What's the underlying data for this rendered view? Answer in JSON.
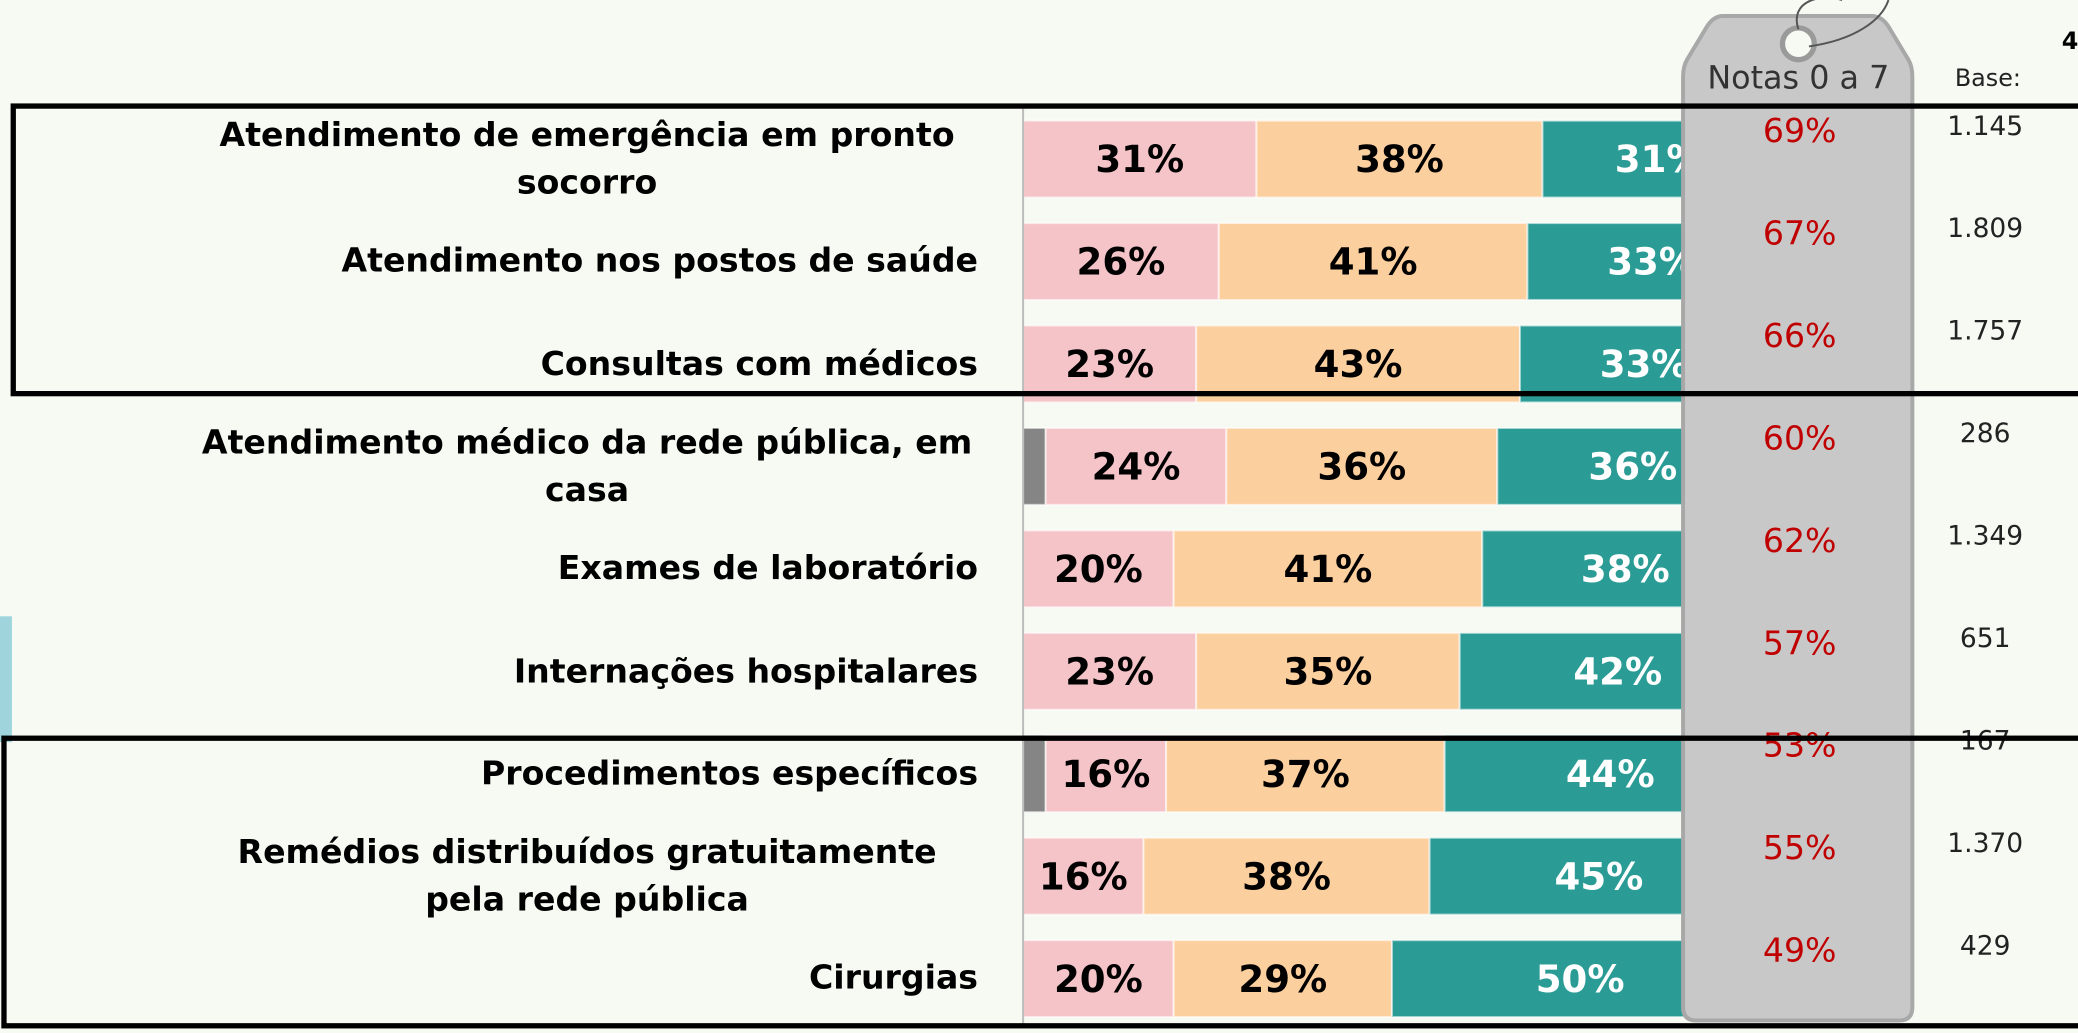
{
  "chart_data": {
    "type": "stacked_barh",
    "page_number": "4",
    "categories": [
      "Atendimento de emergência em pronto socorro",
      "Atendimento nos postos de saúde",
      "Consultas com médicos",
      "Atendimento médico da rede pública, em casa",
      "Exames de laboratório",
      "Internações hospitalares",
      "Procedimentos específicos",
      "Remédios distribuídos gratuitamente pela rede pública",
      "Cirurgias"
    ],
    "xlim": [
      0,
      100
    ],
    "series": [
      {
        "color": "#858585",
        "values": [
          0,
          0,
          0,
          3,
          0,
          0,
          3,
          0,
          0
        ]
      },
      {
        "color": "#f5c4c8",
        "label_color": "#000000",
        "values": [
          31,
          26,
          23,
          24,
          20,
          23,
          16,
          16,
          20
        ],
        "value_labels": [
          "31%",
          "26%",
          "23%",
          "24%",
          "20%",
          "23%",
          "16%",
          "16%",
          "20%"
        ]
      },
      {
        "color": "#fccf9e",
        "label_color": "#000000",
        "values": [
          38,
          41,
          43,
          36,
          41,
          35,
          37,
          38,
          29
        ],
        "value_labels": [
          "38%",
          "41%",
          "43%",
          "36%",
          "41%",
          "35%",
          "37%",
          "38%",
          "29%"
        ]
      },
      {
        "color": "#2b9c95",
        "label_color": "#ffffff",
        "values": [
          31,
          33,
          33,
          36,
          38,
          42,
          44,
          45,
          50
        ],
        "value_labels": [
          "31%",
          "33%",
          "33%",
          "36%",
          "38%",
          "42%",
          "44%",
          "45%",
          "50%"
        ]
      }
    ],
    "notas": {
      "title": "Notas 0 a 7",
      "color": "#c00000",
      "values": [
        69,
        67,
        66,
        60,
        62,
        57,
        53,
        55,
        49
      ],
      "value_labels": [
        "69%",
        "67%",
        "66%",
        "60%",
        "62%",
        "57%",
        "53%",
        "55%",
        "49%"
      ]
    },
    "base": {
      "title": "Base:",
      "values": [
        1145,
        1809,
        1757,
        286,
        1349,
        651,
        167,
        1370,
        429
      ],
      "value_labels": [
        "1.145",
        "1.809",
        "1.757",
        "286",
        "1.349",
        "651",
        "167",
        "1.370",
        "429"
      ]
    }
  }
}
